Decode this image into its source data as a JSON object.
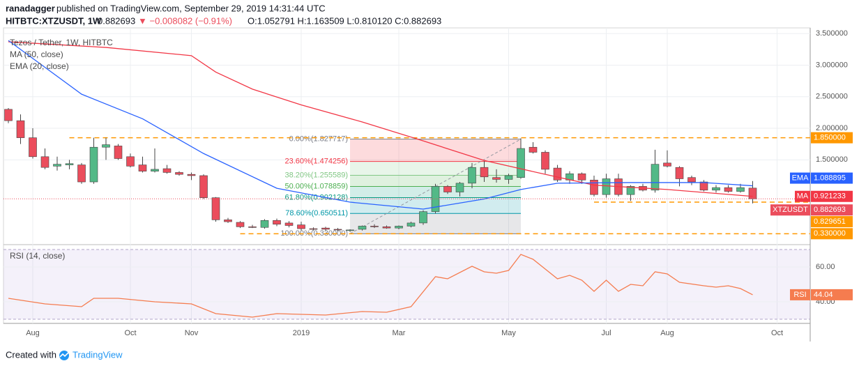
{
  "header": {
    "publisher": "ranadagger",
    "published": "published on TradingView.com, September 29, 2019 14:31:44 UTC",
    "symbol": "HITBTC:XTZUSDT, 1W",
    "last": "0.882693",
    "change": "▼ −0.008082 (−0.91%)",
    "ohlc": "O:1.052791 H:1.163509 L:0.810120 C:0.882693"
  },
  "chart_data": [
    {
      "type": "candlestick",
      "title": "Tezos / Tether, 1W, HITBTC",
      "tag": "XTZUSDT",
      "up_color": "#53b987",
      "down_color": "#eb4d5c",
      "categories": [
        null,
        null,
        "Aug",
        null,
        null,
        null,
        null,
        null,
        null,
        null,
        "Oct",
        null,
        null,
        null,
        null,
        "Nov",
        null,
        null,
        null,
        null,
        null,
        null,
        null,
        null,
        "2019",
        null,
        null,
        null,
        null,
        null,
        null,
        null,
        "Mar",
        null,
        null,
        null,
        null,
        null,
        null,
        null,
        null,
        "May",
        null,
        null,
        null,
        null,
        null,
        null,
        null,
        "Jul",
        null,
        null,
        null,
        null,
        "Aug",
        null,
        null,
        null,
        null,
        null,
        null,
        null,
        null,
        "Oct",
        null,
        null
      ],
      "open": [
        2.3,
        2.12,
        1.85,
        1.55,
        1.4,
        1.42,
        1.42,
        1.15,
        1.7,
        1.72,
        1.55,
        1.42,
        1.32,
        1.36,
        1.3,
        1.27,
        1.25,
        0.9,
        0.55,
        0.51,
        0.44,
        0.43,
        0.54,
        0.5,
        0.47,
        0.41,
        0.42,
        0.4,
        0.38,
        0.4,
        0.45,
        0.44,
        0.42,
        0.45,
        0.5,
        0.68,
        1.08,
        0.99,
        1.13,
        1.38,
        1.22,
        1.19,
        1.22,
        1.7,
        1.62,
        1.37,
        1.18,
        1.28,
        1.18,
        0.95,
        1.2,
        0.95,
        1.08,
        1.02,
        1.45,
        1.38,
        1.22,
        1.15,
        1.02,
        1.06,
        1.0,
        1.052791,
        null,
        null,
        null,
        null
      ],
      "high": [
        2.32,
        2.22,
        2.0,
        1.68,
        1.55,
        1.5,
        1.45,
        1.85,
        1.85,
        1.75,
        1.6,
        1.55,
        1.68,
        1.42,
        1.32,
        1.3,
        1.27,
        0.91,
        0.58,
        0.53,
        0.47,
        0.56,
        0.57,
        0.53,
        0.52,
        0.43,
        0.44,
        0.42,
        0.4,
        0.46,
        0.48,
        0.46,
        0.46,
        0.52,
        0.7,
        1.12,
        1.1,
        1.15,
        1.45,
        1.48,
        1.35,
        1.28,
        1.84,
        1.78,
        1.65,
        1.42,
        1.32,
        1.3,
        1.25,
        1.28,
        1.28,
        1.1,
        1.12,
        1.66,
        1.65,
        1.4,
        1.25,
        1.18,
        1.1,
        1.1,
        1.12,
        1.163509,
        null,
        null,
        null,
        null
      ],
      "low": [
        2.08,
        1.75,
        1.52,
        1.35,
        1.33,
        1.35,
        1.12,
        1.12,
        1.5,
        1.5,
        1.38,
        1.3,
        1.3,
        1.28,
        1.25,
        1.18,
        0.88,
        0.52,
        0.5,
        0.42,
        0.42,
        0.41,
        0.45,
        0.43,
        0.38,
        0.38,
        0.38,
        0.37,
        0.36,
        0.38,
        0.42,
        0.41,
        0.4,
        0.43,
        0.47,
        0.65,
        0.96,
        0.92,
        1.05,
        1.15,
        1.14,
        1.12,
        1.2,
        1.6,
        1.28,
        1.15,
        1.12,
        1.12,
        0.92,
        0.9,
        0.92,
        0.85,
        1.0,
        0.98,
        1.38,
        1.08,
        1.1,
        1.0,
        0.98,
        0.98,
        0.98,
        0.81012,
        null,
        null,
        null,
        null
      ],
      "close": [
        2.12,
        1.85,
        1.55,
        1.38,
        1.43,
        1.44,
        1.15,
        1.7,
        1.74,
        1.52,
        1.4,
        1.32,
        1.35,
        1.3,
        1.27,
        1.25,
        0.9,
        0.55,
        0.52,
        0.44,
        0.43,
        0.54,
        0.48,
        0.46,
        0.41,
        0.4,
        0.4,
        0.39,
        0.39,
        0.45,
        0.44,
        0.42,
        0.45,
        0.5,
        0.68,
        1.08,
        0.99,
        1.13,
        1.38,
        1.23,
        1.19,
        1.25,
        1.68,
        1.62,
        1.35,
        1.18,
        1.28,
        1.18,
        0.95,
        1.2,
        0.95,
        1.08,
        1.02,
        1.43,
        1.4,
        1.2,
        1.15,
        1.02,
        1.06,
        1.0,
        1.06,
        0.882693,
        null,
        null,
        null,
        null
      ],
      "ylim": [
        0.19,
        3.59
      ],
      "yticks": [
        {
          "value": 1.5,
          "label": "1.500000"
        },
        {
          "value": 2.0,
          "label": "2.000000"
        },
        {
          "value": 2.5,
          "label": "2.500000"
        },
        {
          "value": 3.0,
          "label": "3.000000"
        },
        {
          "value": 3.5,
          "label": "3.500000"
        }
      ],
      "grid": true,
      "indicators": [
        {
          "name": "MA (50, close)",
          "tag": "MA",
          "color": "#f23645",
          "x": [
            0,
            8,
            15,
            17,
            20,
            24,
            29,
            34,
            39,
            44,
            48,
            54,
            61
          ],
          "values": [
            3.37,
            3.28,
            3.15,
            2.89,
            2.62,
            2.37,
            2.1,
            1.8,
            1.49,
            1.27,
            1.1,
            1.03,
            0.921233
          ]
        },
        {
          "name": "EMA (20, close)",
          "tag": "EMA",
          "color": "#2962ff",
          "x": [
            0,
            6,
            11,
            16,
            22,
            28,
            34,
            39,
            42,
            45,
            51,
            57,
            61
          ],
          "values": [
            3.39,
            2.54,
            2.15,
            1.6,
            1.05,
            0.83,
            0.72,
            0.88,
            1.03,
            1.13,
            1.14,
            1.14,
            1.088895
          ]
        }
      ],
      "fib": {
        "x": [
          28,
          42
        ],
        "levels": [
          {
            "value": 1.827717,
            "label": "0.00%(1.827717)",
            "color": "#787b86"
          },
          {
            "value": 1.474256,
            "label": "23.60%(1.474256)",
            "color": "#f23645"
          },
          {
            "value": 1.255589,
            "label": "38.20%(1.255589)",
            "color": "#81c784"
          },
          {
            "value": 1.078859,
            "label": "50.00%(1.078859)",
            "color": "#4caf50"
          },
          {
            "value": 0.902128,
            "label": "61.80%(0.902128)",
            "color": "#089981"
          },
          {
            "value": 0.650511,
            "label": "78.60%(0.650511)",
            "color": "#0097a7"
          },
          {
            "value": 0.33,
            "label": "100.00%(0.330000)",
            "color": "#787b86"
          }
        ]
      },
      "hlines": [
        {
          "value": 1.85,
          "label": "1.850000",
          "from": 5,
          "color": "#ff9800"
        },
        {
          "value": 0.829651,
          "label": "0.829651",
          "from": 48,
          "color": "#ff9800"
        },
        {
          "value": 0.33,
          "label": "0.330000",
          "from": 19,
          "color": "#ff9800"
        }
      ]
    },
    {
      "type": "line",
      "title": "RSI (14, close)",
      "ylim": [
        28.4,
        71.2
      ],
      "yticks": [
        {
          "value": 40,
          "label": "40.00"
        },
        {
          "value": 60,
          "label": "60.00"
        }
      ],
      "band": [
        30,
        70
      ],
      "series": [
        {
          "name": "RSI (14, close)",
          "tag": "RSI",
          "color": "#f57c4f",
          "x": [
            0,
            3,
            6,
            7,
            9,
            12,
            15,
            17,
            20,
            22,
            26,
            29,
            31,
            33,
            35,
            36,
            38,
            39,
            40,
            41,
            42,
            43,
            45,
            46,
            47,
            48,
            49,
            50,
            51,
            52,
            53,
            54,
            55,
            57,
            58,
            59,
            60,
            61
          ],
          "values": [
            42,
            38.8,
            37.2,
            42,
            42,
            40,
            38.8,
            33.2,
            31.2,
            33.2,
            32.4,
            34.4,
            34,
            37.2,
            54.4,
            53.2,
            60.4,
            57.2,
            56.4,
            58,
            67.2,
            64.4,
            53.2,
            55.2,
            52.4,
            46,
            52.4,
            46,
            50,
            49.2,
            57.2,
            56,
            51.2,
            49.2,
            48.4,
            49.2,
            47.6,
            44.04
          ]
        }
      ]
    }
  ],
  "footer": {
    "created": "Created with",
    "brand": "TradingView"
  }
}
